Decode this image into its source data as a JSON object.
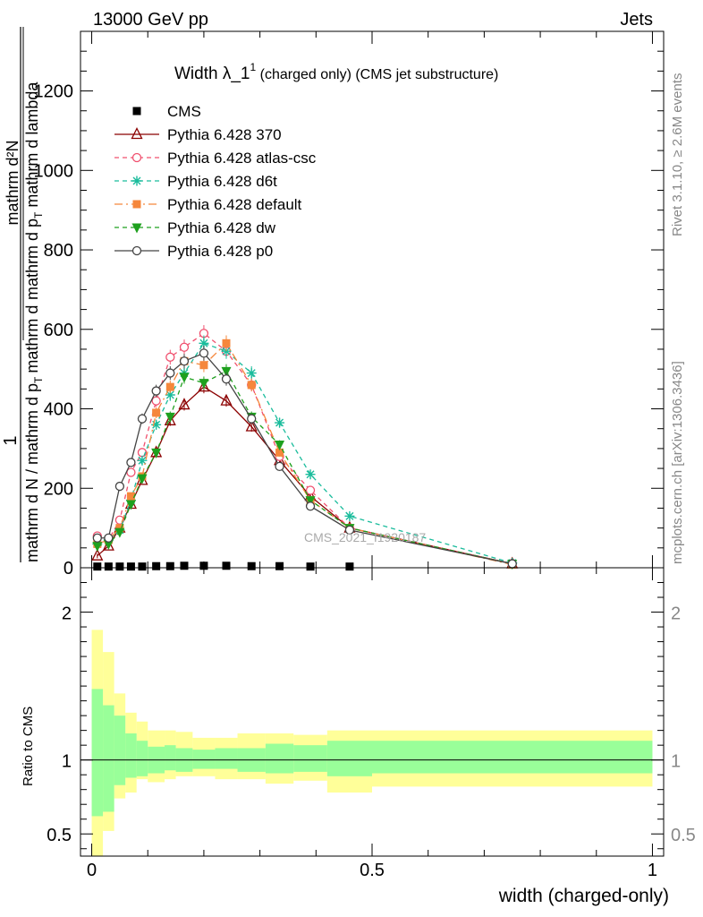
{
  "header": {
    "left": "13000 GeV pp",
    "right": "Jets"
  },
  "side_labels": {
    "rivet": "Rivet 3.1.10, ≥ 2.6M events",
    "mcplots": "mcplots.cern.ch [arXiv:1306.3436]"
  },
  "watermark": "CMS_2021_I1920187",
  "colors": {
    "cms": "#000000",
    "p370": "#8b0000",
    "atlas": "#f0506e",
    "d6t": "#1abc9c",
    "default": "#f5873c",
    "dw": "#1ea01e",
    "p0": "#444444",
    "band_inner": "#99ff99",
    "band_outer": "#ffff99"
  },
  "chart_data": [
    {
      "type": "line",
      "title_main": "Width λ_1",
      "title_sup": "1",
      "title_rest": " (charged only) (CMS jet substructure)",
      "ylabel_fraction_num": "1",
      "ylabel_fraction_den": "mathrm d N / mathrm d p",
      "ylabel_frac2_num": "mathrm d²N",
      "ylabel_frac2_den": "mathrm d p",
      "ylabel_frac2_den_sub": "T",
      "ylabel_frac2_den_tail": " mathrm d lambda",
      "ylabel_den_sub": "T",
      "ylabel_den_tail": "mathrm d",
      "xlim": [
        -0.02,
        1.02
      ],
      "ylim": [
        0,
        1350
      ],
      "yticks": [
        0,
        200,
        400,
        600,
        800,
        1000,
        1200
      ],
      "ytick_labels": [
        "0",
        "200",
        "400",
        "600",
        "800",
        "1000",
        "1200"
      ],
      "legend_position": "top-left",
      "x": [
        0.01,
        0.03,
        0.05,
        0.07,
        0.09,
        0.115,
        0.14,
        0.165,
        0.2,
        0.24,
        0.285,
        0.335,
        0.39,
        0.46,
        0.75
      ],
      "series": [
        {
          "name": "CMS",
          "key": "cms",
          "marker": "square",
          "dash": "",
          "values": [
            3,
            3,
            3,
            3,
            3,
            4,
            4,
            5,
            5,
            5,
            4,
            4,
            3,
            3,
            0
          ]
        },
        {
          "name": "Pythia 6.428 370",
          "key": "p370",
          "marker": "triangle-up-open",
          "dash": "",
          "values": [
            30,
            55,
            100,
            160,
            220,
            290,
            370,
            410,
            455,
            420,
            355,
            270,
            180,
            100,
            10
          ]
        },
        {
          "name": "Pythia 6.428 atlas-csc",
          "key": "atlas",
          "marker": "circle-open",
          "dash": "5,4",
          "values": [
            80,
            70,
            120,
            240,
            290,
            420,
            530,
            555,
            590,
            545,
            460,
            280,
            195,
            100,
            10
          ]
        },
        {
          "name": "Pythia 6.428 d6t",
          "key": "d6t",
          "marker": "asterisk",
          "dash": "5,4",
          "values": [
            60,
            70,
            95,
            170,
            270,
            360,
            435,
            490,
            565,
            545,
            490,
            365,
            235,
            130,
            12
          ]
        },
        {
          "name": "Pythia 6.428 default",
          "key": "default",
          "marker": "square",
          "dash": "9,4,2,4",
          "values": [
            60,
            70,
            100,
            180,
            230,
            390,
            455,
            520,
            510,
            565,
            460,
            290,
            170,
            100,
            8
          ]
        },
        {
          "name": "Pythia 6.428 dw",
          "key": "dw",
          "marker": "triangle-down",
          "dash": "5,4",
          "values": [
            55,
            60,
            90,
            160,
            225,
            290,
            380,
            480,
            465,
            495,
            380,
            310,
            170,
            100,
            10
          ]
        },
        {
          "name": "Pythia 6.428 p0",
          "key": "p0",
          "marker": "circle-open",
          "dash": "",
          "values": [
            75,
            75,
            205,
            265,
            375,
            445,
            490,
            520,
            540,
            475,
            375,
            255,
            155,
            95,
            10
          ]
        }
      ]
    },
    {
      "type": "area",
      "ylabel": "Ratio to CMS",
      "xlabel": "width (charged-only)",
      "xlim": [
        -0.02,
        1.02
      ],
      "ylim": [
        0.35,
        2.3
      ],
      "xticks": [
        0,
        0.5,
        1
      ],
      "xtick_labels": [
        "0",
        "0.5",
        "1"
      ],
      "yticks": [
        0.5,
        1,
        2
      ],
      "ytick_labels": [
        "0.5",
        "1",
        "2"
      ],
      "bin_edges": [
        0,
        0.02,
        0.04,
        0.06,
        0.08,
        0.1,
        0.13,
        0.15,
        0.18,
        0.22,
        0.26,
        0.31,
        0.36,
        0.42,
        0.5,
        1.0
      ],
      "inner_lo": [
        0.62,
        0.65,
        0.83,
        0.88,
        0.89,
        0.91,
        0.93,
        0.92,
        0.94,
        0.94,
        0.92,
        0.91,
        0.92,
        0.89,
        0.91
      ],
      "inner_hi": [
        1.48,
        1.37,
        1.3,
        1.18,
        1.13,
        1.09,
        1.1,
        1.08,
        1.07,
        1.08,
        1.08,
        1.11,
        1.1,
        1.13,
        1.13
      ],
      "outer_lo": [
        0.34,
        0.52,
        0.74,
        0.78,
        0.87,
        0.85,
        0.87,
        0.89,
        0.89,
        0.87,
        0.87,
        0.84,
        0.86,
        0.78,
        0.82
      ],
      "outer_hi": [
        1.88,
        1.73,
        1.45,
        1.32,
        1.26,
        1.2,
        1.2,
        1.19,
        1.15,
        1.15,
        1.18,
        1.18,
        1.17,
        1.2,
        1.2
      ]
    }
  ]
}
